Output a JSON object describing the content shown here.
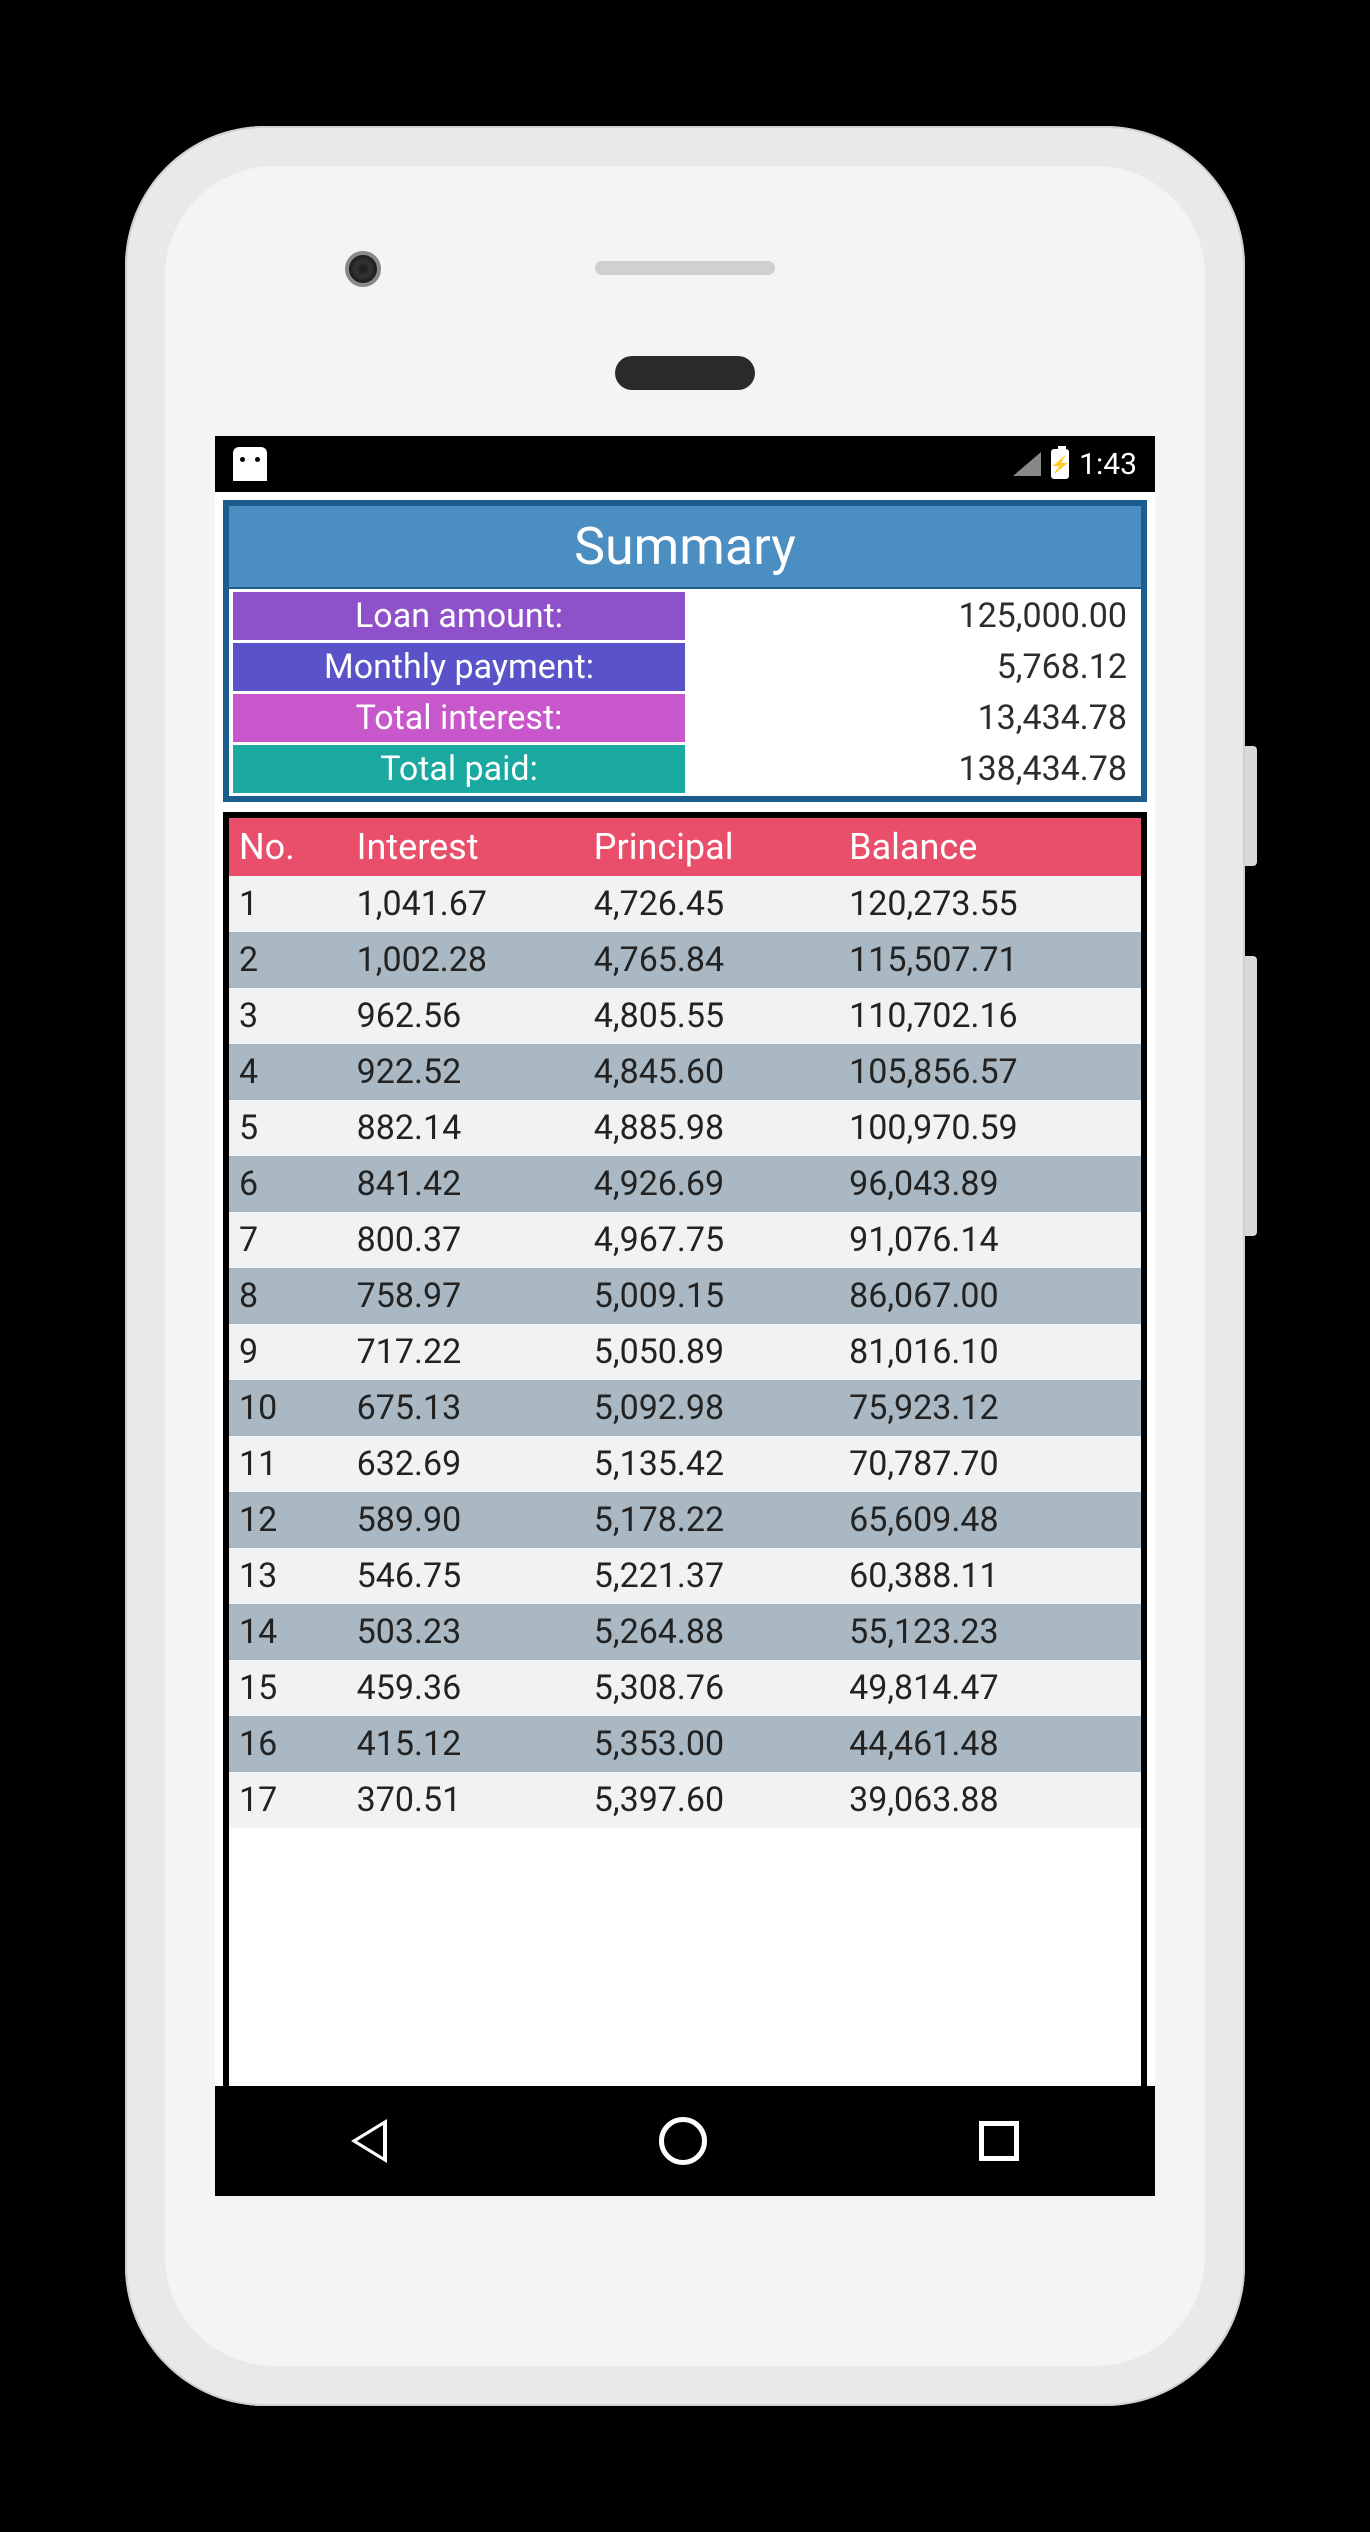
{
  "status": {
    "time": "1:43"
  },
  "summary": {
    "title": "Summary",
    "header_bg": "#4a8ec2",
    "border_color": "#1b5e8e",
    "rows": [
      {
        "label": "Loan amount:",
        "value": "125,000.00",
        "bg": "#8e51c9"
      },
      {
        "label": "Monthly payment:",
        "value": "5,768.12",
        "bg": "#5a52c9"
      },
      {
        "label": "Total interest:",
        "value": "13,434.78",
        "bg": "#c957cc"
      },
      {
        "label": "Total paid:",
        "value": "138,434.78",
        "bg": "#1aa9a0"
      }
    ]
  },
  "table": {
    "header_bg": "#e94f6a",
    "row_odd_bg": "#f2f2f2",
    "row_even_bg": "#a9b8c2",
    "columns": [
      "No.",
      "Interest",
      "Principal",
      "Balance"
    ],
    "rows": [
      [
        "1",
        "1,041.67",
        "4,726.45",
        "120,273.55"
      ],
      [
        "2",
        "1,002.28",
        "4,765.84",
        "115,507.71"
      ],
      [
        "3",
        "962.56",
        "4,805.55",
        "110,702.16"
      ],
      [
        "4",
        "922.52",
        "4,845.60",
        "105,856.57"
      ],
      [
        "5",
        "882.14",
        "4,885.98",
        "100,970.59"
      ],
      [
        "6",
        "841.42",
        "4,926.69",
        "96,043.89"
      ],
      [
        "7",
        "800.37",
        "4,967.75",
        "91,076.14"
      ],
      [
        "8",
        "758.97",
        "5,009.15",
        "86,067.00"
      ],
      [
        "9",
        "717.22",
        "5,050.89",
        "81,016.10"
      ],
      [
        "10",
        "675.13",
        "5,092.98",
        "75,923.12"
      ],
      [
        "11",
        "632.69",
        "5,135.42",
        "70,787.70"
      ],
      [
        "12",
        "589.90",
        "5,178.22",
        "65,609.48"
      ],
      [
        "13",
        "546.75",
        "5,221.37",
        "60,388.11"
      ],
      [
        "14",
        "503.23",
        "5,264.88",
        "55,123.23"
      ],
      [
        "15",
        "459.36",
        "5,308.76",
        "49,814.47"
      ],
      [
        "16",
        "415.12",
        "5,353.00",
        "44,461.48"
      ],
      [
        "17",
        "370.51",
        "5,397.60",
        "39,063.88"
      ]
    ]
  }
}
